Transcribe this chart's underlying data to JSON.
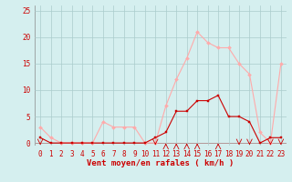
{
  "hours": [
    0,
    1,
    2,
    3,
    4,
    5,
    6,
    7,
    8,
    9,
    10,
    11,
    12,
    13,
    14,
    15,
    16,
    17,
    18,
    19,
    20,
    21,
    22,
    23
  ],
  "wind_avg": [
    1,
    0,
    0,
    0,
    0,
    0,
    0,
    0,
    0,
    0,
    0,
    1,
    2,
    6,
    6,
    8,
    8,
    9,
    5,
    5,
    4,
    0,
    1,
    1
  ],
  "wind_gust": [
    3,
    1,
    0,
    0,
    0,
    0,
    4,
    3,
    3,
    3,
    0,
    0,
    7,
    12,
    16,
    21,
    19,
    18,
    18,
    15,
    13,
    2,
    0,
    15
  ],
  "bg_color": "#d5efef",
  "grid_color": "#aacccc",
  "line_avg_color": "#cc0000",
  "line_gust_color": "#ffaaaa",
  "xlabel": "Vent moyen/en rafales ( km/h )",
  "ylabel_ticks": [
    0,
    5,
    10,
    15,
    20,
    25
  ],
  "ylim": [
    -0.5,
    26
  ],
  "xlim": [
    -0.5,
    23.5
  ],
  "axis_color": "#cc0000",
  "xlabel_color": "#cc0000",
  "tick_color": "#cc0000",
  "tick_fontsize": 5.5,
  "xlabel_fontsize": 6.5
}
